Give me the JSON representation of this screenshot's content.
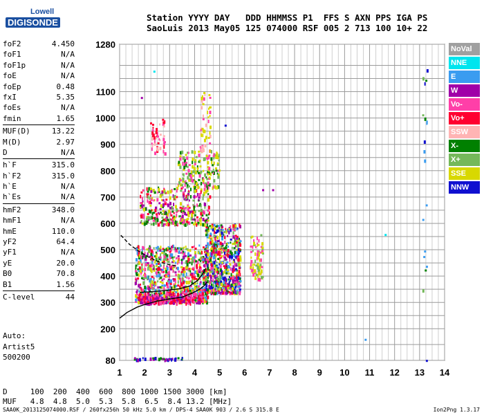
{
  "logo": {
    "top": "Lowell",
    "bottom": "DIGISONDE"
  },
  "header": {
    "line1": "Station YYYY DAY   DDD HHMMSS P1  FFS S AXN PPS IGA PS",
    "line2": "SaoLuis 2013 May05 125 074000 RSF 005 2 713 100 10+ 22"
  },
  "params": [
    {
      "label": "foF2",
      "value": "4.450"
    },
    {
      "label": "foF1",
      "value": "N/A"
    },
    {
      "label": "foF1p",
      "value": "N/A"
    },
    {
      "label": "foE",
      "value": "N/A"
    },
    {
      "label": "foEp",
      "value": "0.48"
    },
    {
      "label": "fxI",
      "value": "5.35"
    },
    {
      "label": "foEs",
      "value": "N/A"
    },
    {
      "label": "fmin",
      "value": "1.65"
    },
    {
      "label": "MUF(D)",
      "value": "13.22"
    },
    {
      "label": "M(D)",
      "value": "2.97"
    },
    {
      "label": "D",
      "value": "N/A"
    },
    {
      "label": "h`F",
      "value": "315.0"
    },
    {
      "label": "h`F2",
      "value": "315.0"
    },
    {
      "label": "h`E",
      "value": "N/A"
    },
    {
      "label": "h`Es",
      "value": "N/A"
    },
    {
      "label": "hmF2",
      "value": "348.0"
    },
    {
      "label": "hmF1",
      "value": "N/A"
    },
    {
      "label": "hmE",
      "value": "110.0"
    },
    {
      "label": "yF2",
      "value": "64.4"
    },
    {
      "label": "yF1",
      "value": "N/A"
    },
    {
      "label": "yE",
      "value": "20.0"
    },
    {
      "label": "B0",
      "value": "70.8"
    },
    {
      "label": "B1",
      "value": "1.56"
    },
    {
      "label": "C-level",
      "value": "44"
    }
  ],
  "auto": {
    "line1": "Auto:",
    "line2": "Artist5",
    "line3": "500200"
  },
  "legend": [
    {
      "label": "NoVal",
      "color": "#a0a0a0"
    },
    {
      "label": "NNE",
      "color": "#00e5ee"
    },
    {
      "label": "E",
      "color": "#3a9cf0"
    },
    {
      "label": "W",
      "color": "#a000a8"
    },
    {
      "label": "Vo-",
      "color": "#ff3fa8"
    },
    {
      "label": "Vo+",
      "color": "#ff0030"
    },
    {
      "label": "SSW",
      "color": "#ffb4b4"
    },
    {
      "label": "X-",
      "color": "#008000"
    },
    {
      "label": "X+",
      "color": "#74b85a"
    },
    {
      "label": "SSE",
      "color": "#d8d800"
    },
    {
      "label": "NNW",
      "color": "#1010d0"
    }
  ],
  "muf_table": {
    "line1": "D     100  200  400  600  800 1000 1500 3000 [km]",
    "line2": "MUF   4.8  4.8  5.0  5.3  5.8  6.5  8.4 13.2 [MHz]"
  },
  "footer": {
    "left": "SAA0K_2013125074000.RSF / 260fx256h 50 kHz 5.0 km / DPS-4 SAA0K 903 / 2.6 S 315.8 E",
    "right": "Ion2Png 1.3.17"
  },
  "chart_data": {
    "type": "scatter",
    "x_range": [
      1,
      14
    ],
    "y_range": [
      80,
      1280
    ],
    "x_ticks": [
      1,
      2,
      3,
      4,
      5,
      6,
      7,
      8,
      9,
      10,
      11,
      12,
      13,
      14
    ],
    "y_ticks": [
      80,
      200,
      300,
      400,
      500,
      600,
      700,
      800,
      900,
      1000,
      1100,
      1280
    ],
    "x_minor_step": 0.25,
    "y_gridlines": [
      80,
      140,
      200,
      250,
      300,
      350,
      400,
      450,
      500,
      550,
      600,
      650,
      700,
      750,
      800,
      850,
      900,
      950,
      1000,
      1050,
      1100,
      1150,
      1200,
      1280
    ],
    "grid": true,
    "echo_clusters": [
      {
        "f_range": [
          1.6,
          4.5
        ],
        "h_range": [
          305,
          520
        ],
        "count": 900,
        "colors": [
          "#ff0030",
          "#ff3fa8",
          "#a000a8",
          "#d8d800",
          "#74b85a",
          "#008000",
          "#3a9cf0"
        ]
      },
      {
        "f_range": [
          1.7,
          4.3
        ],
        "h_range": [
          300,
          340
        ],
        "count": 220,
        "colors": [
          "#ff0030",
          "#ff3fa8",
          "#a000a8"
        ]
      },
      {
        "f_range": [
          4.4,
          5.8
        ],
        "h_range": [
          340,
          600
        ],
        "count": 700,
        "colors": [
          "#d8d800",
          "#74b85a",
          "#ff3fa8",
          "#ff0030",
          "#008000",
          "#a000a8",
          "#3a9cf0",
          "#1010d0"
        ]
      },
      {
        "f_range": [
          1.8,
          4.6
        ],
        "h_range": [
          600,
          740
        ],
        "count": 380,
        "colors": [
          "#ff0030",
          "#ff3fa8",
          "#d8d800",
          "#74b85a",
          "#a000a8",
          "#008000"
        ]
      },
      {
        "f_range": [
          3.3,
          5.0
        ],
        "h_range": [
          740,
          880
        ],
        "count": 180,
        "colors": [
          "#d8d800",
          "#74b85a",
          "#ff3fa8",
          "#008000"
        ]
      },
      {
        "f_range": [
          2.2,
          2.8
        ],
        "h_range": [
          870,
          1000
        ],
        "count": 45,
        "colors": [
          "#ff0030",
          "#ff3fa8",
          "#ffb4b4"
        ]
      },
      {
        "f_range": [
          4.2,
          4.6
        ],
        "h_range": [
          880,
          1100
        ],
        "count": 50,
        "colors": [
          "#ff3fa8",
          "#d8d800",
          "#ffb4b4"
        ]
      },
      {
        "f_range": [
          6.2,
          6.7
        ],
        "h_range": [
          390,
          560
        ],
        "count": 80,
        "colors": [
          "#d8d800",
          "#74b85a",
          "#ff3fa8"
        ]
      },
      {
        "f_range": [
          1.5,
          3.5
        ],
        "h_range": [
          86,
          94
        ],
        "count": 35,
        "colors": [
          "#1010d0",
          "#008000",
          "#a000a8"
        ]
      },
      {
        "f_range": [
          13.1,
          13.3
        ],
        "h_range": [
          350,
          1230
        ],
        "count": 18,
        "colors": [
          "#1010d0",
          "#008000",
          "#74b85a",
          "#3a9cf0"
        ]
      }
    ],
    "isolated_echoes": [
      {
        "f": 1.85,
        "h": 1080,
        "color": "#a000a8"
      },
      {
        "f": 2.35,
        "h": 1180,
        "color": "#00e5ee"
      },
      {
        "f": 5.2,
        "h": 975,
        "color": "#1010d0"
      },
      {
        "f": 6.7,
        "h": 730,
        "color": "#a000a8"
      },
      {
        "f": 7.1,
        "h": 730,
        "color": "#a000a8"
      },
      {
        "f": 10.8,
        "h": 162,
        "color": "#3a9cf0"
      },
      {
        "f": 11.6,
        "h": 560,
        "color": "#00e5ee"
      },
      {
        "f": 13.25,
        "h": 82,
        "color": "#1010d0"
      }
    ],
    "trace_solid": {
      "x": [
        1.0,
        1.3,
        1.7,
        2.0,
        2.5,
        3.0,
        3.5,
        3.9,
        4.2,
        4.4,
        4.5
      ],
      "y": [
        240,
        262,
        282,
        292,
        305,
        313,
        320,
        335,
        350,
        365,
        378
      ]
    },
    "trace_lower": {
      "x": [
        1.8,
        2.2,
        2.6,
        3.0,
        3.4,
        3.8,
        4.1,
        4.3,
        4.45
      ],
      "y": [
        338,
        340,
        343,
        347,
        352,
        362,
        382,
        405,
        430
      ]
    },
    "trace_dashed": {
      "x": [
        1.05,
        1.4,
        1.8,
        2.2,
        2.6,
        3.0,
        3.3
      ],
      "y": [
        555,
        520,
        492,
        470,
        453,
        443,
        438
      ]
    }
  }
}
